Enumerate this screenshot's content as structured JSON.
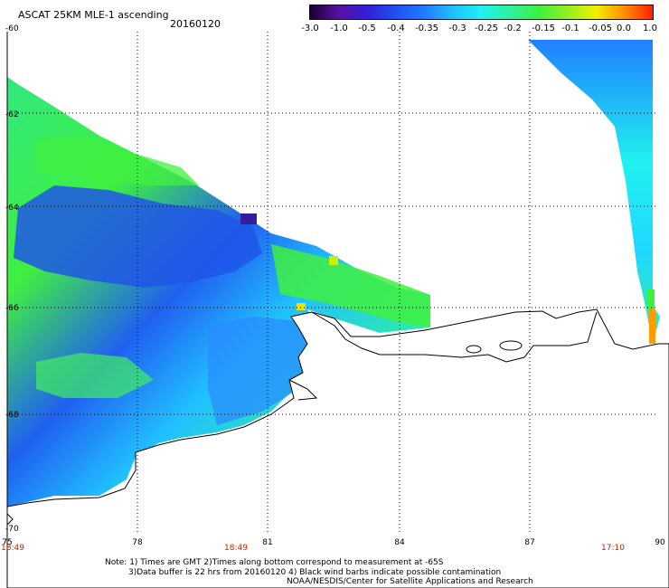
{
  "header": {
    "title": "ASCAT 25KM MLE-1 ascending",
    "date": "20160120"
  },
  "colorbar": {
    "labels": [
      "-3.0",
      "-1.0",
      "-0.5",
      "-0.4",
      "-0.35",
      "-0.3",
      "-0.25",
      "-0.2",
      "-0.15",
      "-0.1",
      "-0.05",
      "0.0",
      "1.0"
    ],
    "colors": [
      "#1a0030",
      "#5a10a0",
      "#3020d8",
      "#2050f0",
      "#1f7cff",
      "#20c0ff",
      "#20f0f0",
      "#30f0a0",
      "#40f040",
      "#90f020",
      "#f0f000",
      "#ff9000",
      "#ff2000"
    ]
  },
  "map": {
    "lat_labels": [
      "-60",
      "-62",
      "-64",
      "-66",
      "-68",
      "-70"
    ],
    "lon_labels": [
      "75",
      "78",
      "81",
      "84",
      "87",
      "90"
    ],
    "time_labels": [
      "18:49",
      "18:49",
      "17:10"
    ],
    "land_color": "#ffffff",
    "coast_color": "#000000"
  },
  "notes": {
    "line1": "Note: 1) Times are GMT 2)Times along bottom correspond to measurement at -65S",
    "line2": "3)Data buffer is 22 hrs from 20160120 4) Black wind barbs indicate possible contamination",
    "line3": "NOAA/NESDIS/Center for Satellite Applications and Research"
  }
}
